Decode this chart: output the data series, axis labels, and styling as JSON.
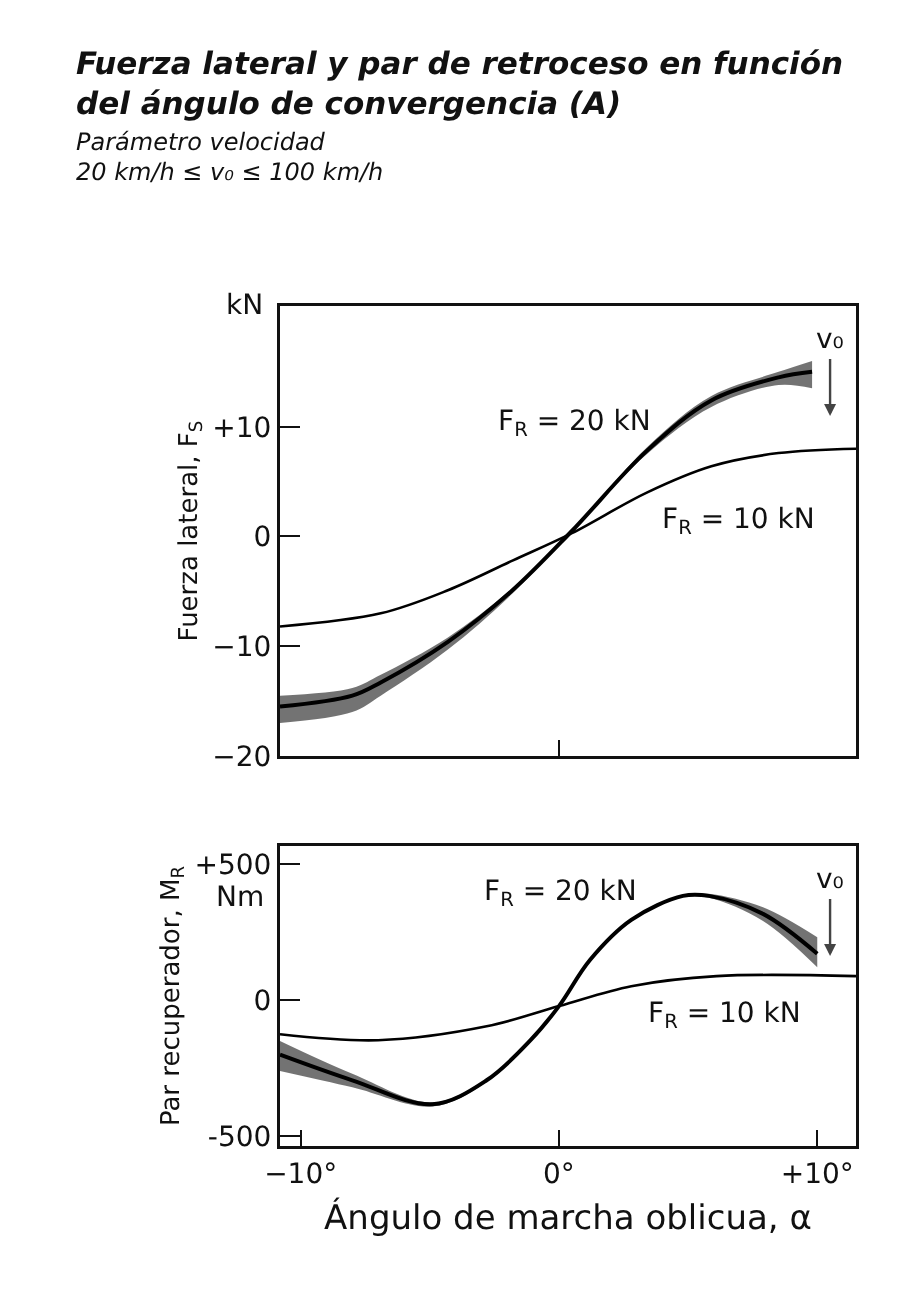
{
  "chart_data": [
    {
      "type": "line",
      "title": "Fuerza lateral y par de retroceso en función del ángulo de convergencia (A)",
      "subtitle": "Parámetro velocidad\n20 km/h ≤ v₀ ≤ 100 km/h",
      "ylabel": "Fuerza lateral, F$_{S}$",
      "xlim": [
        -10.8,
        11.5
      ],
      "xticks": [
        {
          "value": 0,
          "label": null
        }
      ],
      "ylim": [
        -20,
        21
      ],
      "yticks": [
        {
          "value": -20,
          "label": "−20"
        },
        {
          "value": -10,
          "label": "−10"
        },
        0,
        {
          "value": 10,
          "label": "+10"
        }
      ],
      "tick_labels": "y",
      "grid": false,
      "legend": false,
      "annotations": [
        "kN",
        "v₀"
      ],
      "series": [
        {
          "name": "F$_{R}$ = 20 kN",
          "color": "#000000",
          "x": [
            -10.8,
            -8,
            -6.9,
            -4.3,
            -1.8,
            0.5,
            3.4,
            5.9,
            8.5,
            9.8
          ],
          "values": [
            -15.5,
            -14.5,
            -13.3,
            -9.6,
            -4.9,
            0.5,
            7.8,
            12.4,
            14.5,
            15
          ],
          "lower": [
            -17,
            -16,
            -14.5,
            -10.3,
            -5.2,
            0.5,
            7.5,
            11.8,
            13.8,
            13.5
          ],
          "upper": [
            -14.5,
            -13.8,
            -12.6,
            -9.2,
            -4.7,
            0.5,
            8.1,
            12.8,
            15,
            16
          ]
        },
        {
          "name": "F$_{R}$ = 10 kN",
          "color": "#000000",
          "x": [
            -10.8,
            -6.9,
            -4.3,
            -1.8,
            0.5,
            3.4,
            5.9,
            8.5,
            11.5
          ],
          "values": [
            -8.2,
            -7,
            -4.9,
            -2.2,
            0.3,
            4,
            6.4,
            7.6,
            8
          ]
        }
      ]
    },
    {
      "type": "line",
      "xlabel": "Ángulo de marcha oblicua, α",
      "ylabel": "Par recuperador, M$_{R}$",
      "xlim": [
        -10.8,
        11.5
      ],
      "xticks": [
        {
          "value": -10,
          "label": "−10°"
        },
        {
          "value": 0,
          "label": "0°"
        },
        {
          "value": 10,
          "label": "+10°"
        }
      ],
      "ylim": [
        -535,
        565
      ],
      "yticks": [
        {
          "value": -500,
          "label": "-500"
        },
        0,
        {
          "value": 500,
          "label": "+500"
        }
      ],
      "grid": false,
      "legend": false,
      "annotations": [
        "Nm",
        "v₀"
      ],
      "series": [
        {
          "name": "F$_{R}$ = 20 kN",
          "color": "#000000",
          "x": [
            -10.8,
            -8,
            -4.9,
            -2.8,
            -1.1,
            0,
            1.2,
            2.8,
            4.8,
            5.8,
            7.9,
            10
          ],
          "values": [
            -200,
            -294,
            -382,
            -294,
            -147,
            -22,
            147,
            294,
            382,
            382,
            316,
            170
          ],
          "lower": [
            -260,
            -320,
            -390,
            -300,
            -150,
            -22,
            145,
            290,
            378,
            375,
            290,
            120
          ],
          "upper": [
            -150,
            -270,
            -375,
            -288,
            -144,
            -22,
            150,
            298,
            386,
            390,
            340,
            230
          ]
        },
        {
          "name": "F$_{R}$ = 10 kN",
          "color": "#000000",
          "x": [
            -10.8,
            -7,
            -2.8,
            0,
            2.8,
            6.1,
            11.5
          ],
          "values": [
            -125,
            -147,
            -96,
            -22,
            51,
            88,
            88
          ]
        }
      ]
    }
  ]
}
